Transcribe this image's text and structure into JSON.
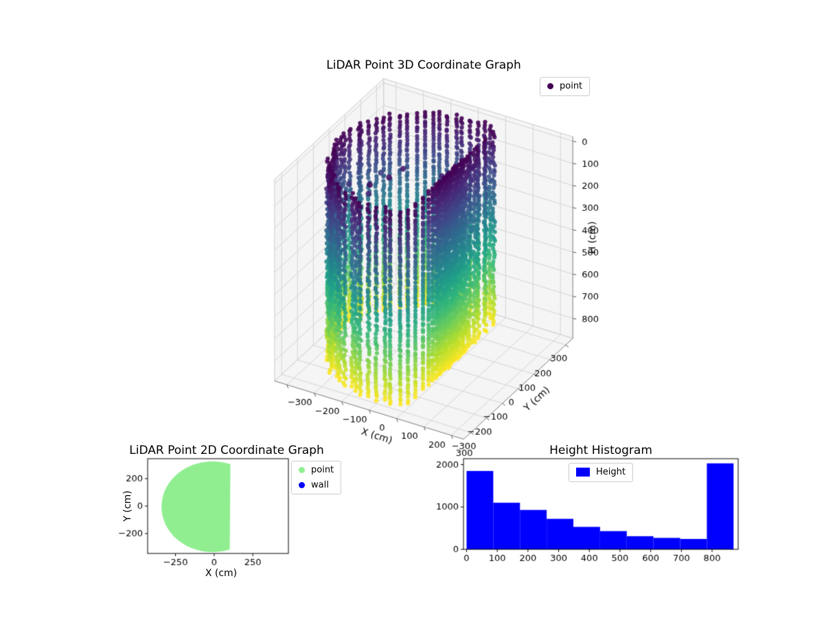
{
  "page": {
    "background": "#ffffff"
  },
  "chart_data": [
    {
      "id": "lidar-3d",
      "type": "scatter3d",
      "title": "LiDAR Point 3D Coordinate Graph",
      "xlabel": "X (cm)",
      "ylabel": "Y (cm)",
      "zlabel": "H (cm)",
      "xticks": [
        -300,
        -200,
        -100,
        0,
        100,
        200,
        300
      ],
      "yticks": [
        -300,
        -200,
        -100,
        0,
        100,
        200,
        300
      ],
      "zticks": [
        0,
        100,
        200,
        300,
        400,
        500,
        600,
        700,
        800
      ],
      "xlim": [
        -345,
        345
      ],
      "ylim": [
        -345,
        345
      ],
      "zlim": [
        -20,
        890
      ],
      "z_axis_inverted": true,
      "colormap": "viridis",
      "grid": true,
      "legend": [
        {
          "label": "point",
          "color": "#440154"
        }
      ],
      "cloud": {
        "shape": "cylinder",
        "radius_cm": 300,
        "wall_x_cm": 100,
        "height_cm": [
          0,
          870
        ],
        "columns": 72,
        "points_per_column": 62,
        "noise_points": 12,
        "color_by": "height_cm"
      }
    },
    {
      "id": "lidar-2d",
      "type": "scatter",
      "title": "LiDAR Point 2D Coordinate Graph",
      "xlabel": "X (cm)",
      "ylabel": "Y (cm)",
      "xticks": [
        -250,
        0,
        250
      ],
      "yticks": [
        -200,
        0,
        200
      ],
      "xlim": [
        -430,
        480
      ],
      "ylim": [
        -345,
        345
      ],
      "legend": [
        {
          "label": "point",
          "color": "#90ee90"
        },
        {
          "label": "wall",
          "color": "#0000ff"
        }
      ],
      "region": {
        "shape": "disk",
        "center": [
          -10,
          -5
        ],
        "radius": 330,
        "clip_x_max": 105,
        "color": "#90ee90"
      }
    },
    {
      "id": "height-histogram",
      "type": "bar",
      "title": "Height Histogram",
      "bin_edges": [
        0,
        87,
        174,
        261,
        348,
        435,
        522,
        609,
        696,
        783,
        870
      ],
      "values": [
        1850,
        1100,
        930,
        720,
        530,
        430,
        310,
        270,
        245,
        2030
      ],
      "xticks": [
        0,
        100,
        200,
        300,
        400,
        500,
        600,
        700,
        800
      ],
      "yticks": [
        0,
        1000,
        2000
      ],
      "xlim": [
        -10,
        885
      ],
      "ylim": [
        0,
        2140
      ],
      "bar_color": "#0000ff",
      "legend": [
        {
          "label": "Height",
          "color": "#0000ff"
        }
      ]
    }
  ]
}
